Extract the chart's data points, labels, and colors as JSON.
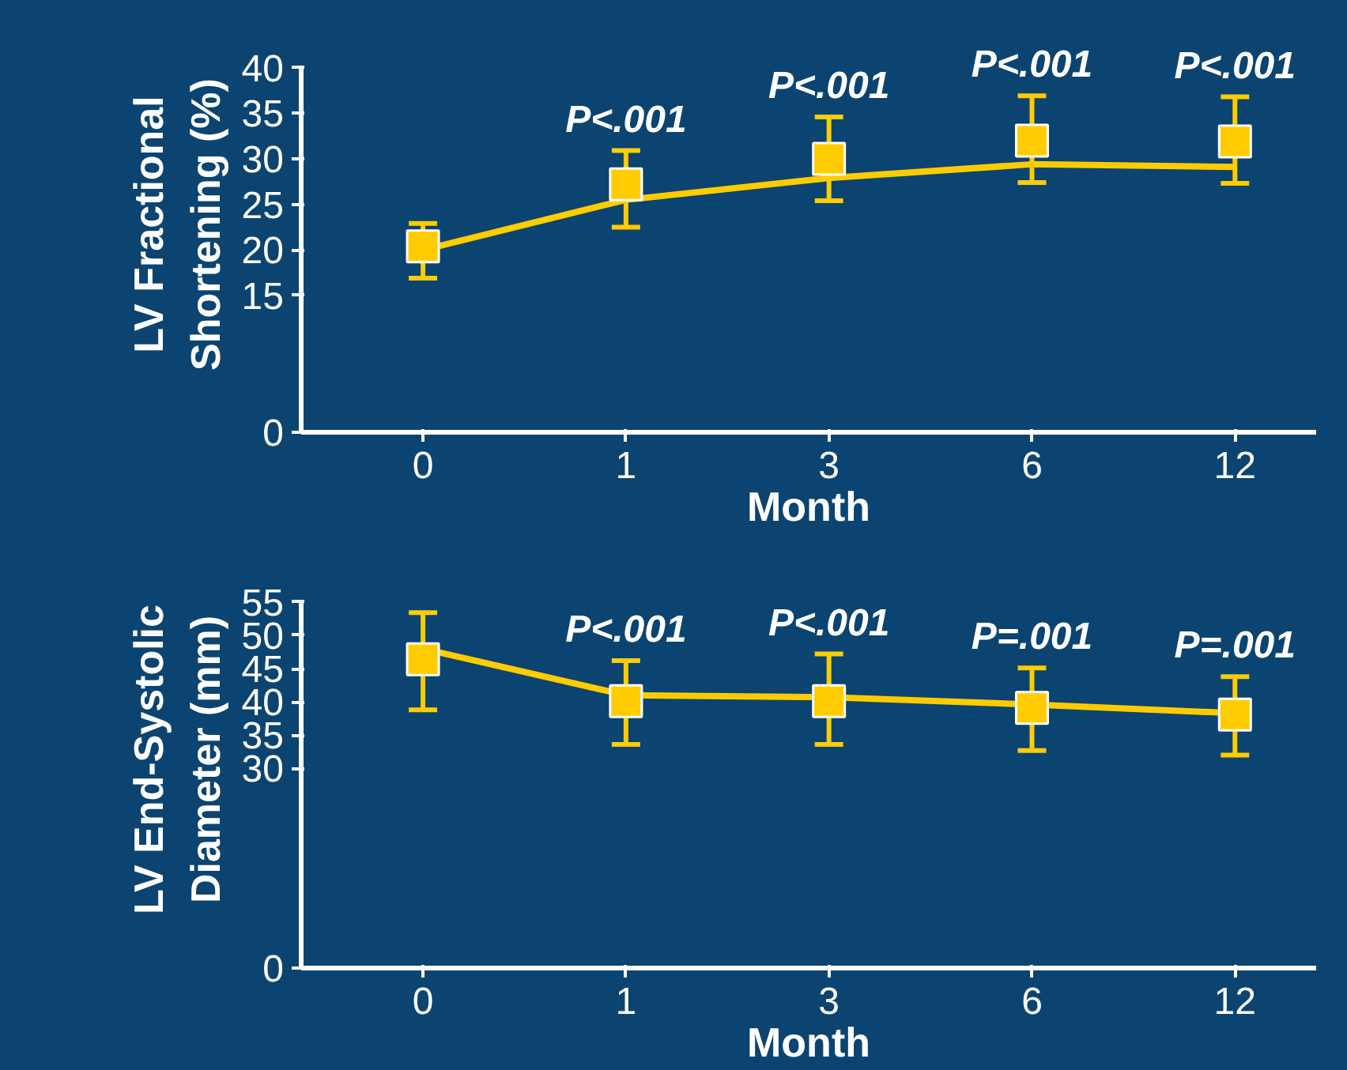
{
  "chart_data": [
    {
      "type": "line",
      "categories": [
        "0",
        "1",
        "3",
        "6",
        "12"
      ],
      "xlabel": "Month",
      "ylabel": "LV Fractional\nShortening (%)",
      "ylim": [
        0,
        40
      ],
      "yticks": [
        0,
        15,
        20,
        25,
        30,
        35,
        40
      ],
      "series": [
        {
          "color": "#ffcc00",
          "values": [
            20,
            25.5,
            27.9,
            29.4,
            29.1
          ],
          "marker": "none"
        },
        {
          "type": "scatter",
          "color": "#ffcc00",
          "values": [
            20.4,
            27.2,
            30,
            32,
            31.9
          ],
          "marker": "square",
          "errors": [
            [
              16.9,
              22.9
            ],
            [
              22.5,
              30.9
            ],
            [
              25.4,
              34.6
            ],
            [
              27.4,
              36.9
            ],
            [
              27.3,
              36.8
            ]
          ]
        }
      ],
      "annotations": [
        "P<.001",
        "P<.001",
        "P<.001",
        "P<.001"
      ]
    },
    {
      "type": "line",
      "categories": [
        "0",
        "1",
        "3",
        "6",
        "12"
      ],
      "xlabel": "Month",
      "ylabel": "LV End-Systolic\nDiameter (mm)",
      "ylim": [
        0,
        55
      ],
      "yticks": [
        0,
        30,
        35,
        40,
        45,
        50,
        55
      ],
      "series": [
        {
          "color": "#ffcc00",
          "values": [
            48,
            41,
            40.7,
            39.6,
            38.3
          ],
          "marker": "none"
        },
        {
          "type": "scatter",
          "color": "#ffcc00",
          "values": [
            46.4,
            40.1,
            40.1,
            39.1,
            38.1
          ],
          "marker": "square",
          "errors": [
            [
              38.8,
              53.4
            ],
            [
              33.6,
              46.2
            ],
            [
              33.6,
              47.2
            ],
            [
              32.7,
              45.1
            ],
            [
              32,
              43.8
            ]
          ]
        }
      ],
      "annotations": [
        "P<.001",
        "P<.001",
        "P=.001",
        "P=.001"
      ]
    }
  ]
}
